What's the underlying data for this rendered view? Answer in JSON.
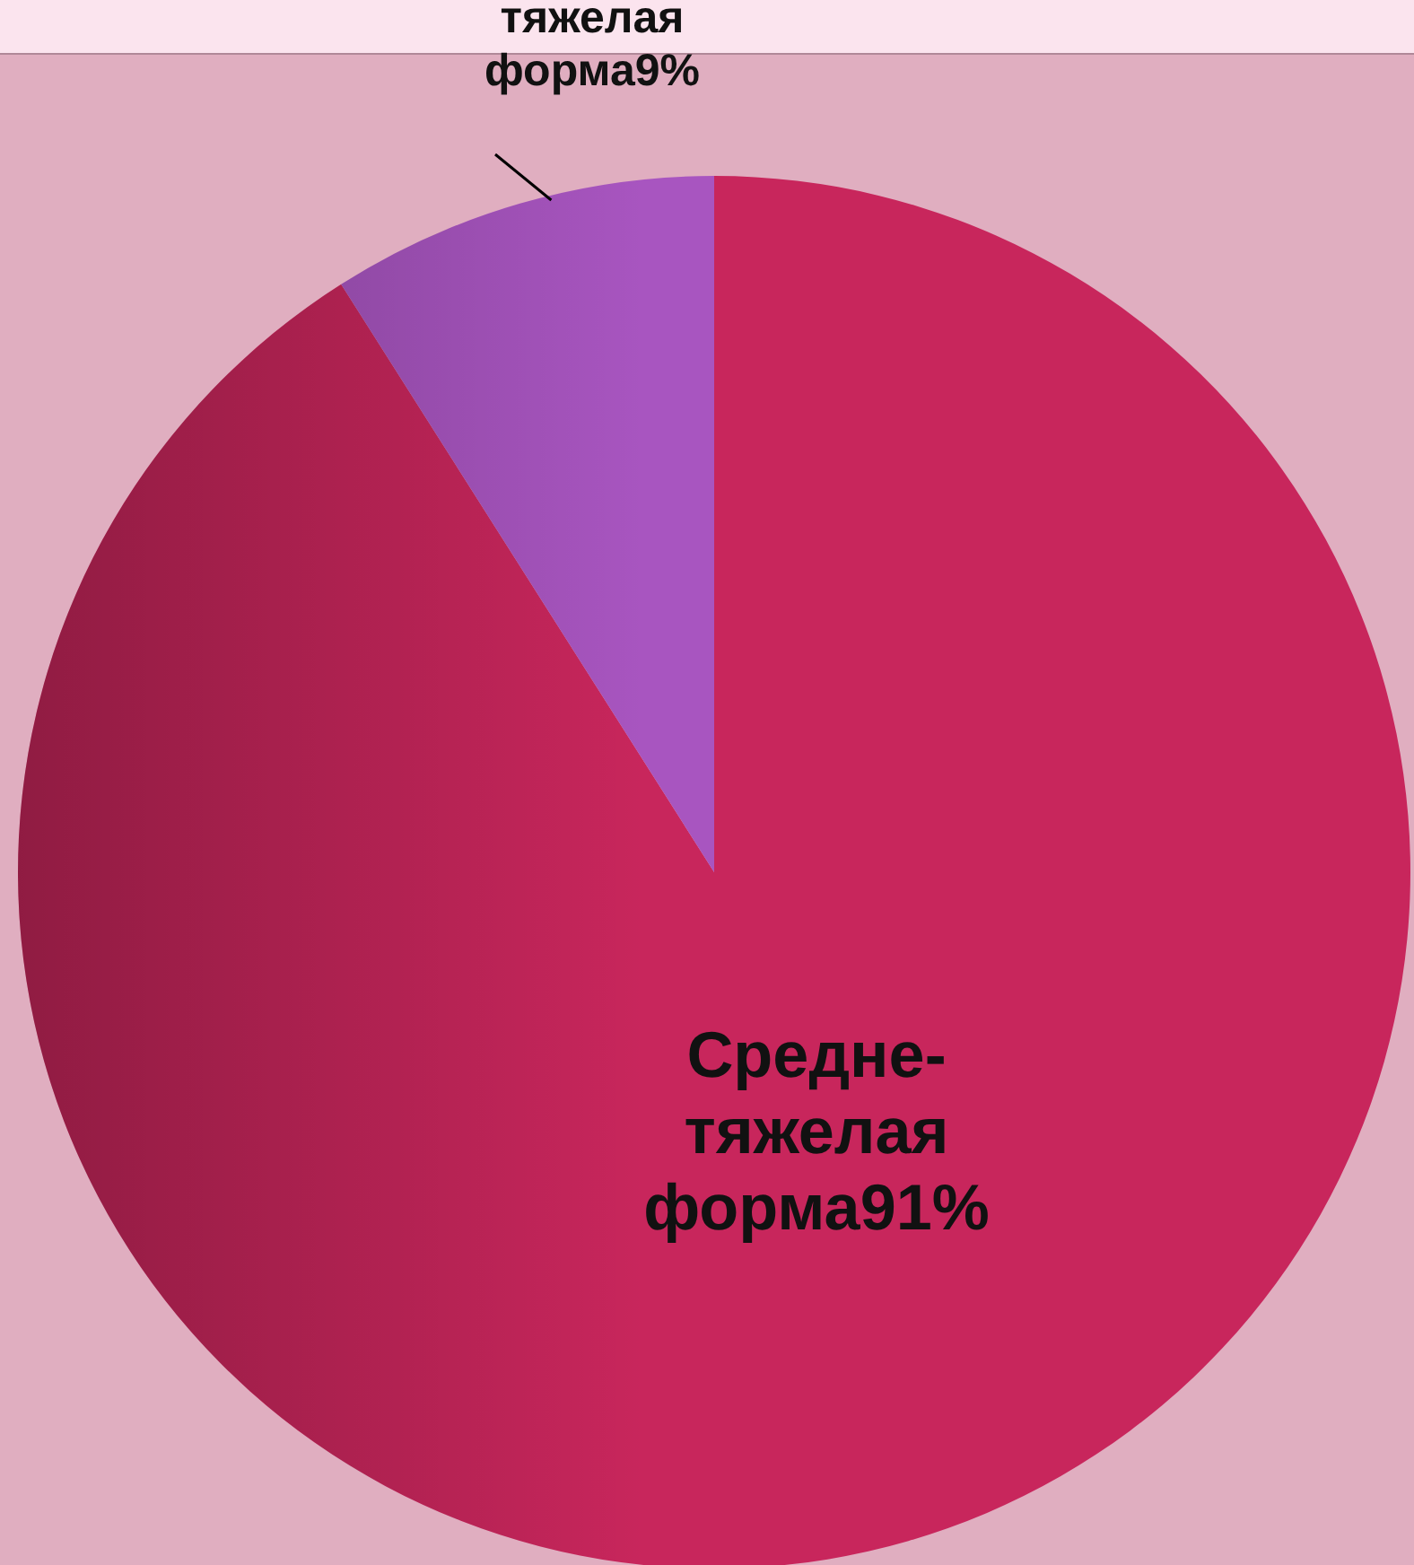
{
  "chart_data": {
    "type": "pie",
    "categories": [
      "Средне-тяжелая форма",
      "тяжелая форма"
    ],
    "values": [
      91,
      9
    ],
    "value_labels": [
      "91%",
      "9%"
    ],
    "colors": [
      "#c8265c",
      "#a855c0"
    ]
  }
}
